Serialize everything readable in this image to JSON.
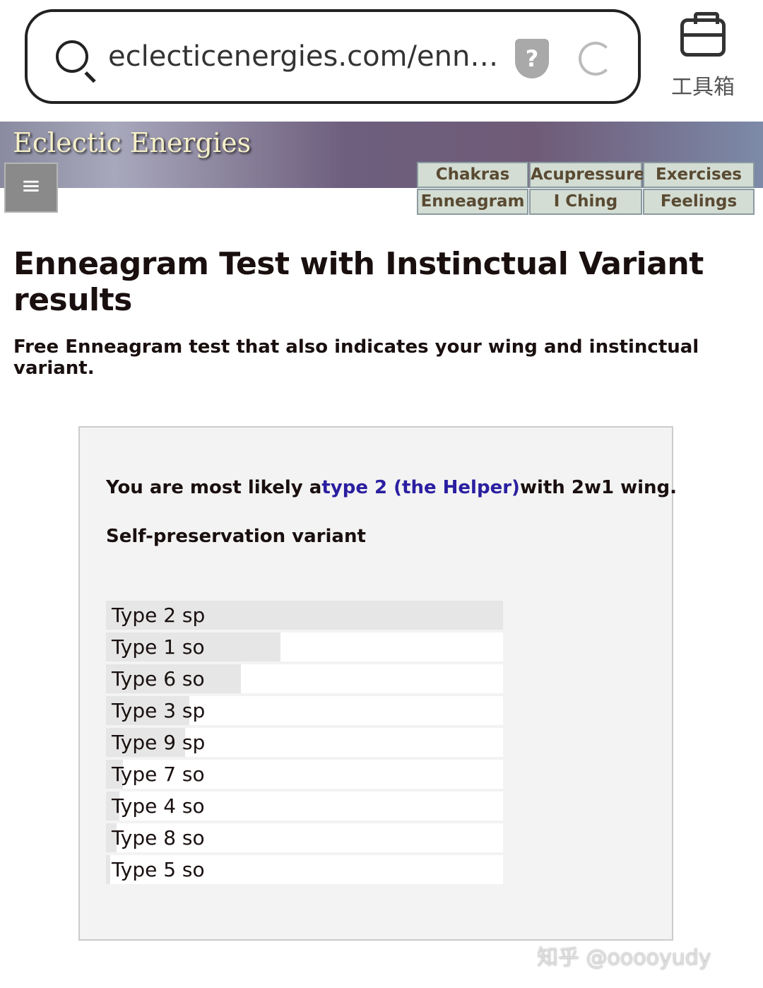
{
  "browser": {
    "url": "eclecticenergies.com/enn…",
    "toolbox_label": "工具箱"
  },
  "site": {
    "logo": "Eclectic Energies",
    "menu_icon": "≡",
    "nav": [
      "Chakras",
      "Acupressure",
      "Exercises",
      "Enneagram",
      "I Ching",
      "Feelings"
    ]
  },
  "page": {
    "title": "Enneagram Test with Instinctual Variant results",
    "subtitle": "Free Enneagram test that also indicates your wing and instinctual variant."
  },
  "result": {
    "prefix": "You are most likely a",
    "type_link": "type 2 (the Helper)",
    "suffix": "with 2w1 wing.",
    "variant": "Self-preservation variant"
  },
  "scores": [
    {
      "label": "Type 2 sp",
      "fraction": 1.0
    },
    {
      "label": "Type 1 so",
      "fraction": 0.44
    },
    {
      "label": "Type 6 so",
      "fraction": 0.34
    },
    {
      "label": "Type 3 sp",
      "fraction": 0.21
    },
    {
      "label": "Type 9 sp",
      "fraction": 0.2
    },
    {
      "label": "Type 7 so",
      "fraction": 0.043
    },
    {
      "label": "Type 4 so",
      "fraction": 0.033
    },
    {
      "label": "Type 8 so",
      "fraction": 0.027
    },
    {
      "label": "Type 5 so",
      "fraction": 0.01
    }
  ],
  "watermark": "知乎 @ooooyudy"
}
